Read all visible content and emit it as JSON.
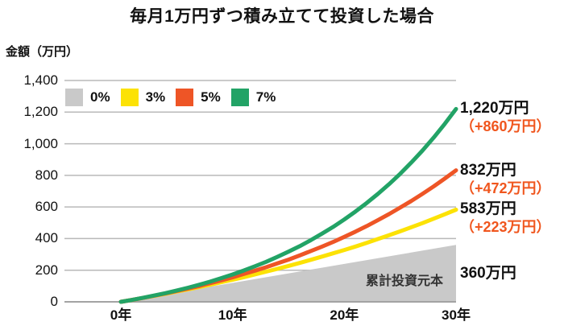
{
  "title": "毎月1万円ずつ積み立てて投資した場合",
  "chart_data": {
    "type": "line",
    "title": "毎月1万円ずつ積み立てて投資した場合",
    "ylabel": "金額（万円）",
    "xlabel": "",
    "x_years": [
      0,
      1,
      2,
      3,
      4,
      5,
      6,
      7,
      8,
      9,
      10,
      11,
      12,
      13,
      14,
      15,
      16,
      17,
      18,
      19,
      20,
      21,
      22,
      23,
      24,
      25,
      26,
      27,
      28,
      29,
      30
    ],
    "x_tick_values": [
      0,
      10,
      20,
      30
    ],
    "x_tick_labels": [
      "0年",
      "10年",
      "20年",
      "30年"
    ],
    "y_tick_values": [
      0,
      200,
      400,
      600,
      800,
      1000,
      1200,
      1400
    ],
    "y_tick_labels": [
      "0",
      "200",
      "400",
      "600",
      "800",
      "1,000",
      "1,200",
      "1,400"
    ],
    "ylim": [
      0,
      1400
    ],
    "grid": true,
    "legend_position": "top-left-inside",
    "colors": {
      "grid": "#b9b9b9",
      "baseline": "#a3a3a3",
      "gain_text": "#f0561e",
      "text": "#111111"
    },
    "series": [
      {
        "name": "0%",
        "style": "area",
        "color": "#c9c9c9",
        "values": [
          0,
          12,
          24,
          36,
          48,
          60,
          72,
          84,
          96,
          108,
          120,
          132,
          144,
          156,
          168,
          180,
          192,
          204,
          216,
          228,
          240,
          252,
          264,
          276,
          288,
          300,
          312,
          324,
          336,
          348,
          360
        ],
        "end_label": "360万円",
        "area_label": "累計投資元本"
      },
      {
        "name": "3%",
        "style": "line",
        "color": "#fce205",
        "values": [
          0,
          12,
          25,
          38,
          51,
          65,
          79,
          93,
          108,
          124,
          140,
          156,
          173,
          191,
          208,
          227,
          246,
          266,
          286,
          307,
          328,
          350,
          373,
          397,
          421,
          446,
          472,
          498,
          526,
          554,
          583
        ],
        "end_label": "583万円",
        "gain_label": "（+223万円）"
      },
      {
        "name": "5%",
        "style": "line",
        "color": "#ee5526",
        "values": [
          0,
          12,
          25,
          39,
          53,
          68,
          84,
          100,
          118,
          136,
          155,
          176,
          197,
          219,
          243,
          267,
          293,
          321,
          349,
          379,
          411,
          444,
          479,
          516,
          555,
          596,
          638,
          683,
          730,
          780,
          832
        ],
        "end_label": "832万円",
        "gain_label": "（+472万円）"
      },
      {
        "name": "7%",
        "style": "line",
        "color": "#22a366",
        "values": [
          0,
          12,
          26,
          40,
          55,
          72,
          89,
          108,
          128,
          150,
          173,
          198,
          225,
          253,
          284,
          317,
          352,
          390,
          431,
          474,
          521,
          571,
          625,
          682,
          744,
          810,
          881,
          957,
          1039,
          1126,
          1220
        ],
        "end_label": "1,220万円",
        "gain_label": "（+860万円）"
      }
    ]
  }
}
